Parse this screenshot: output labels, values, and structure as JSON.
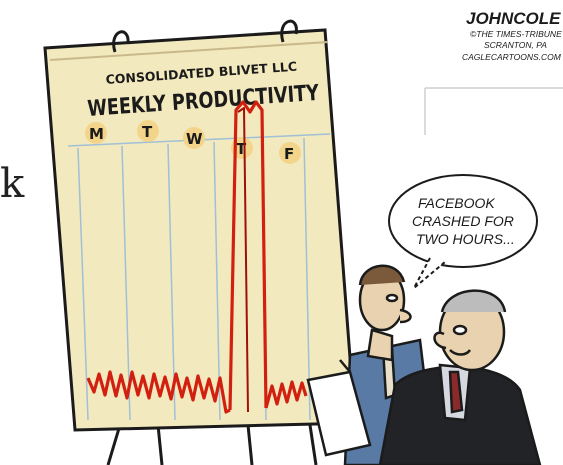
{
  "board": {
    "company": "CONSOLIDATED BLIVET LLC",
    "title": "WEEKLY PRODUCTIVITY",
    "days": [
      "M",
      "T",
      "W",
      "T",
      "F"
    ]
  },
  "speech_bubble": {
    "lines": [
      "FACEBOOK",
      "CRASHED FOR",
      "TWO HOURS..."
    ]
  },
  "signature": {
    "name": "JOHNCOLE",
    "lines": [
      "©THE TIMES-TRIBUNE",
      "SCRANTON, PA",
      "CAGLECARTOONS.COM"
    ]
  },
  "edge_glyph": "k",
  "colors": {
    "board_paper": "#f3e9be",
    "day_circle": "#f2d58a",
    "productivity_line": "#d22010",
    "ink": "#1b1b1b",
    "suit_dark": "#222326",
    "suit_blue": "#5a7aa6",
    "skin": "#e9d2b0"
  }
}
